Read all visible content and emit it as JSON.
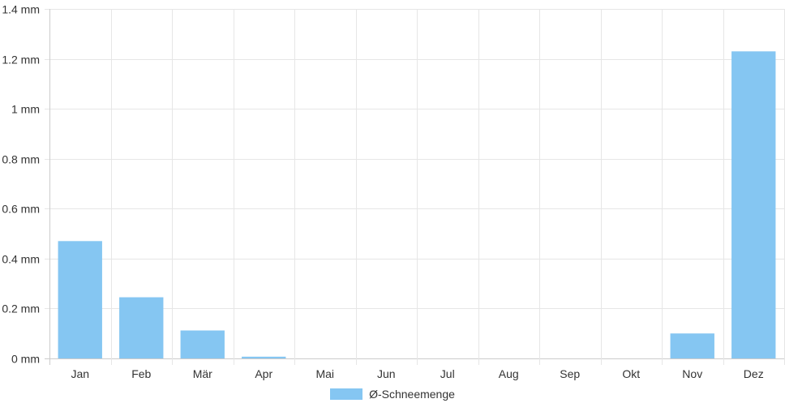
{
  "chart_data": {
    "type": "bar",
    "categories": [
      "Jan",
      "Feb",
      "Mär",
      "Apr",
      "Mai",
      "Jun",
      "Jul",
      "Aug",
      "Sep",
      "Okt",
      "Nov",
      "Dez"
    ],
    "series": [
      {
        "name": "Ø-Schneemenge",
        "values": [
          0.47,
          0.245,
          0.112,
          0.007,
          0,
          0,
          0,
          0,
          0,
          0,
          0.1,
          1.23
        ]
      }
    ],
    "y_ticks": [
      "0 mm",
      "0.2 mm",
      "0.4 mm",
      "0.6 mm",
      "0.8 mm",
      "1 mm",
      "1.2 mm",
      "1.4 mm"
    ],
    "ylim": [
      0,
      1.4
    ],
    "ytick_step": 0.2,
    "grid": true,
    "legend_position": "bottom",
    "colors": {
      "bar": "#85C6F2",
      "grid": "#e6e6e6",
      "axis": "#cccccc",
      "text": "#333333"
    }
  }
}
